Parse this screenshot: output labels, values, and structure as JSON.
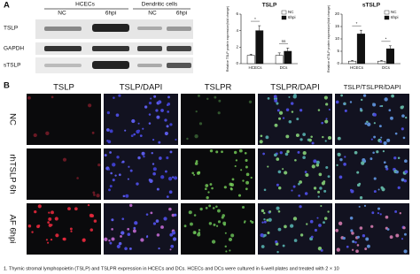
{
  "panel_a": {
    "label": "A"
  },
  "blot": {
    "groups": [
      "HCECs",
      "Dendritic cells"
    ],
    "lanes": [
      "NC",
      "6hpi",
      "NC",
      "6hpi"
    ],
    "rows": [
      "TSLP",
      "GAPDH",
      "sTSLP"
    ]
  },
  "chart_data": [
    {
      "type": "bar",
      "title": "TSLP",
      "y_label": "Relative TSLP protein expression(fold change)",
      "categories": [
        "HCECs",
        "DCs"
      ],
      "series": [
        {
          "name": "NC",
          "color": "#ffffff",
          "values": [
            1,
            1
          ],
          "errors": [
            0.15,
            0.3
          ]
        },
        {
          "name": "6hpi",
          "color": "#111111",
          "values": [
            4,
            1.5
          ],
          "errors": [
            0.6,
            0.4
          ]
        }
      ],
      "annotations": [
        "*",
        "ns"
      ],
      "ylim": [
        0,
        6
      ],
      "yticks": [
        0,
        2,
        4,
        6
      ],
      "legend": "upper right"
    },
    {
      "type": "bar",
      "title": "sTSLP",
      "y_label": "Relative sTSLP protein expression(fold change)",
      "categories": [
        "HCECs",
        "DCs"
      ],
      "series": [
        {
          "name": "NC",
          "color": "#ffffff",
          "values": [
            1,
            1
          ],
          "errors": [
            0.3,
            0.3
          ]
        },
        {
          "name": "6hpi",
          "color": "#111111",
          "values": [
            12,
            6
          ],
          "errors": [
            1.5,
            1.2
          ]
        }
      ],
      "annotations": [
        "*",
        "*"
      ],
      "ylim": [
        0,
        20
      ],
      "yticks": [
        0,
        5,
        10,
        15,
        20
      ],
      "legend": "upper right"
    }
  ],
  "panel_b": {
    "label": "B",
    "columns": [
      "TSLP",
      "TSLP/DAPI",
      "TSLPR",
      "TSLPR/DAPI",
      "TSLP/TSLPR/DAPI"
    ],
    "rows": [
      "NC",
      "rhTSLP 6h",
      "AF 6hpi"
    ]
  },
  "caption": "1. Thymic stromal lymphopoietin (TSLP) and TSLPR expression in HCECs and DCs. HCECs and DCs were cultured in 6-well plates and treated with 2 × 10"
}
